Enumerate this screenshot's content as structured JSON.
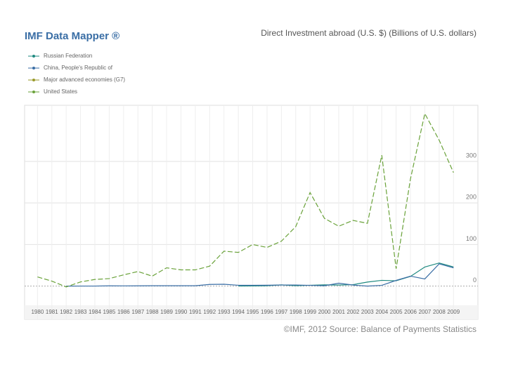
{
  "chart_data": {
    "type": "line",
    "title": "IMF Data Mapper ®",
    "subtitle": "Direct Investment abroad (U.S. $) (Billions of U.S. dollars)",
    "source": "©IMF, 2012 Source: Balance of Payments Statistics",
    "x": [
      1980,
      1981,
      1982,
      1983,
      1984,
      1985,
      1986,
      1987,
      1988,
      1989,
      1990,
      1991,
      1992,
      1993,
      1994,
      1995,
      1996,
      1997,
      1998,
      1999,
      2000,
      2001,
      2002,
      2003,
      2004,
      2005,
      2006,
      2007,
      2008,
      2009
    ],
    "xlim": [
      1979.1,
      2010.7
    ],
    "xticks": [
      1980,
      1981,
      1982,
      1983,
      1984,
      1985,
      1986,
      1987,
      1988,
      1989,
      1990,
      1991,
      1992,
      1993,
      1994,
      1995,
      1996,
      1997,
      1998,
      1999,
      2000,
      2001,
      2002,
      2003,
      2004,
      2005,
      2006,
      2007,
      2008,
      2009
    ],
    "ylim": [
      -80,
      435
    ],
    "yticks": [
      0,
      100,
      200,
      300
    ],
    "grid": true,
    "series": [
      {
        "name": "Russian Federation",
        "color": "#1f8a80",
        "values": [
          null,
          null,
          null,
          null,
          null,
          null,
          null,
          null,
          null,
          null,
          null,
          null,
          null,
          null,
          0.1,
          0.3,
          0.9,
          3,
          1,
          2,
          3,
          2.5,
          3.5,
          9.7,
          13.8,
          12.8,
          23.2,
          45.9,
          55.6,
          46.1
        ]
      },
      {
        "name": "China, People's Republic of",
        "color": "#3a6ea5",
        "values": [
          null,
          null,
          0.04,
          0.1,
          0.1,
          0.6,
          0.5,
          0.6,
          0.9,
          0.8,
          0.8,
          0.9,
          4,
          4.4,
          2,
          2,
          2.1,
          2.6,
          2.6,
          1.8,
          0.9,
          6.9,
          2.5,
          0,
          1.8,
          13.7,
          23.9,
          17.2,
          53.5,
          43.9
        ]
      },
      {
        "name": "Major advanced economies (G7)",
        "color": "#9a9a2a",
        "values": [
          null,
          null,
          null,
          null,
          null,
          null,
          null,
          null,
          null,
          null,
          null,
          null,
          null,
          null,
          null,
          null,
          null,
          null,
          null,
          null,
          null,
          null,
          null,
          null,
          null,
          null,
          null,
          null,
          null,
          null
        ]
      },
      {
        "name": "United States",
        "color": "#6aa23a",
        "values": [
          22,
          12,
          -2,
          10,
          16,
          18,
          27,
          35,
          24,
          44,
          39,
          39,
          48,
          84,
          81,
          100,
          93,
          108,
          143,
          225,
          163,
          144,
          158,
          151,
          315,
          42,
          258,
          415,
          351,
          273
        ]
      }
    ]
  }
}
